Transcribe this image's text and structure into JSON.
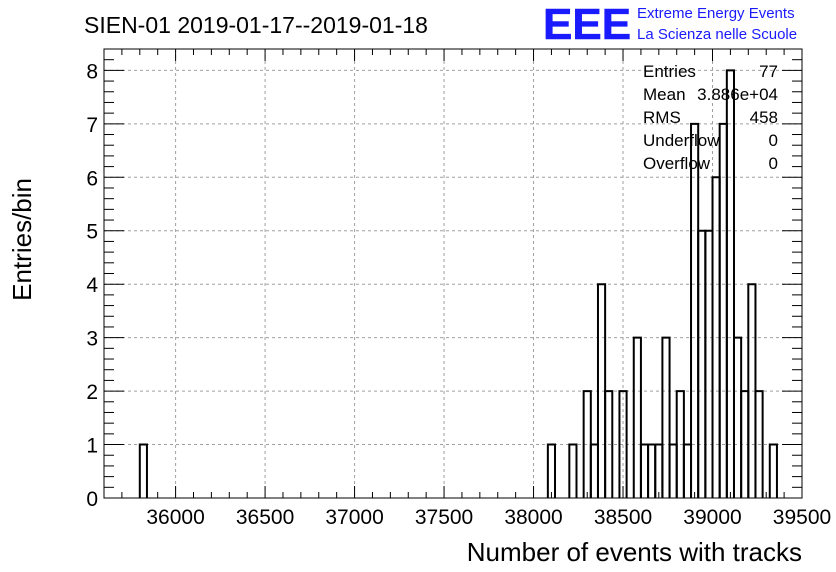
{
  "chart_data": {
    "type": "histogram",
    "title": "SIEN-01 2019-01-17--2019-01-18",
    "xlabel": "Number of events with tracks",
    "ylabel": "Entries/bin",
    "xlim": [
      35600,
      39500
    ],
    "ylim": [
      0,
      8.4
    ],
    "bin_width": 40,
    "grid": true,
    "x_ticks": [
      36000,
      36500,
      37000,
      37500,
      38000,
      38500,
      39000,
      39500
    ],
    "y_ticks": [
      0,
      1,
      2,
      3,
      4,
      5,
      6,
      7,
      8
    ],
    "bins": [
      {
        "x": 35800,
        "count": 1
      },
      {
        "x": 38080,
        "count": 1
      },
      {
        "x": 38200,
        "count": 1
      },
      {
        "x": 38280,
        "count": 2
      },
      {
        "x": 38320,
        "count": 1
      },
      {
        "x": 38360,
        "count": 4
      },
      {
        "x": 38400,
        "count": 2
      },
      {
        "x": 38480,
        "count": 2
      },
      {
        "x": 38560,
        "count": 3
      },
      {
        "x": 38600,
        "count": 1
      },
      {
        "x": 38640,
        "count": 1
      },
      {
        "x": 38680,
        "count": 1
      },
      {
        "x": 38720,
        "count": 3
      },
      {
        "x": 38760,
        "count": 1
      },
      {
        "x": 38800,
        "count": 2
      },
      {
        "x": 38840,
        "count": 1
      },
      {
        "x": 38880,
        "count": 7
      },
      {
        "x": 38920,
        "count": 5
      },
      {
        "x": 38960,
        "count": 5
      },
      {
        "x": 39000,
        "count": 6
      },
      {
        "x": 39040,
        "count": 7
      },
      {
        "x": 39080,
        "count": 8
      },
      {
        "x": 39120,
        "count": 3
      },
      {
        "x": 39160,
        "count": 2
      },
      {
        "x": 39200,
        "count": 4
      },
      {
        "x": 39240,
        "count": 2
      },
      {
        "x": 39320,
        "count": 1
      }
    ],
    "stats": [
      {
        "label": "Entries",
        "value": "77"
      },
      {
        "label": "Mean",
        "value": "3.886e+04"
      },
      {
        "label": "RMS",
        "value": "458"
      },
      {
        "label": "Underflow",
        "value": "0"
      },
      {
        "label": "Overflow",
        "value": "0"
      }
    ],
    "colors": {
      "line": "#000000",
      "grid": "#a0a0a0",
      "logo": "#1a1aff"
    }
  },
  "logo": {
    "mark": "EEE",
    "line1": "Extreme Energy Events",
    "line2": "La Scienza nelle Scuole"
  }
}
